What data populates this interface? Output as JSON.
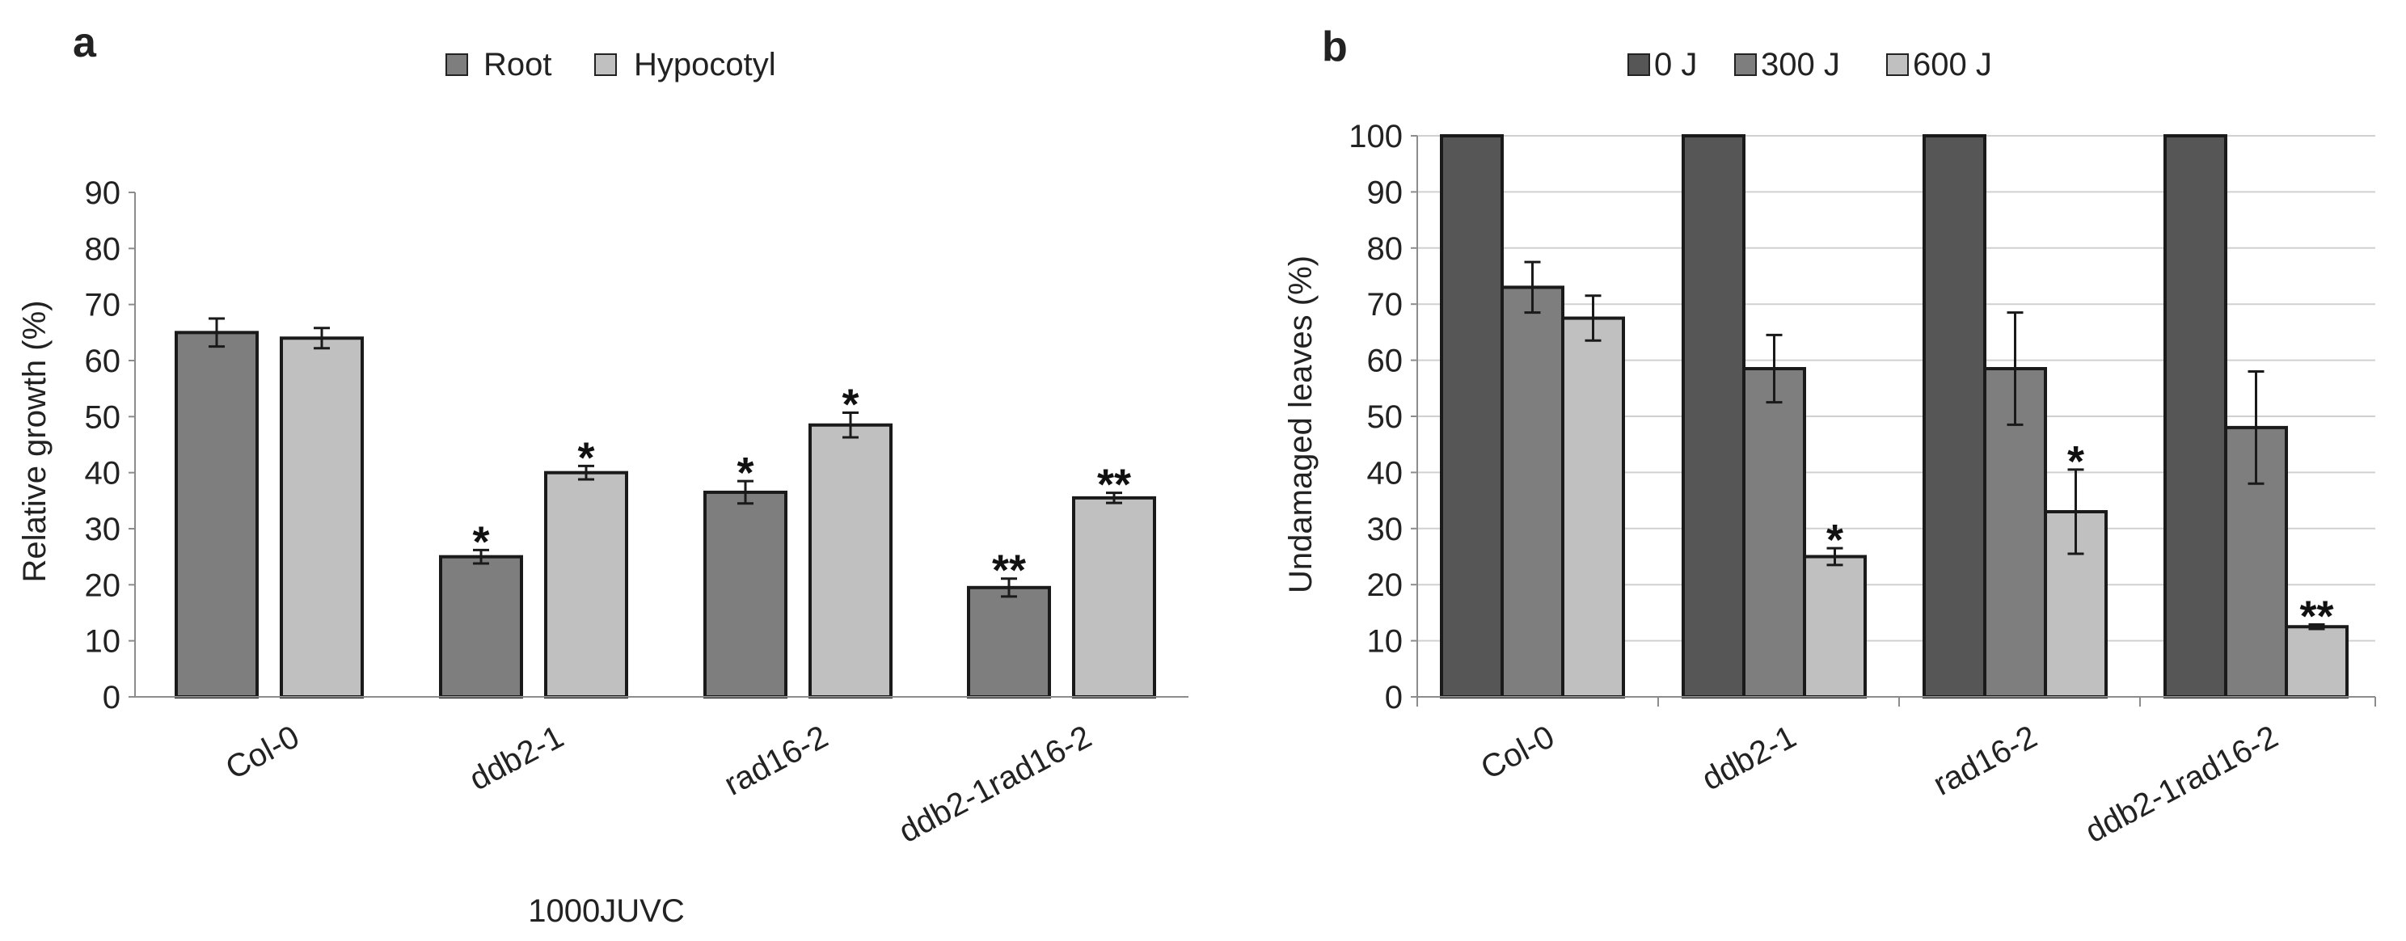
{
  "colors": {
    "dark": "#565656",
    "mid": "#7e7e7e",
    "light": "#c0c0c0",
    "axis": "#8c8c8c",
    "text": "#222222"
  },
  "chart_data": [
    {
      "panel_label": "a",
      "type": "bar",
      "categories": [
        "Col-0",
        "ddb2-1",
        "rad16-2",
        "ddb2-1rad16-2"
      ],
      "series": [
        {
          "name": "Root",
          "color": "#7e7e7e",
          "values": [
            65,
            25,
            36.5,
            19.5
          ],
          "errors": [
            2.5,
            1.2,
            2,
            1.6
          ],
          "marks": [
            "",
            "*",
            "*",
            "**"
          ]
        },
        {
          "name": "Hypocotyl",
          "color": "#c0c0c0",
          "values": [
            64,
            40,
            48.5,
            35.5
          ],
          "errors": [
            1.8,
            1.2,
            2.2,
            0.9
          ],
          "marks": [
            "",
            "*",
            "*",
            "**"
          ]
        }
      ],
      "yticks": [
        0,
        10,
        20,
        30,
        40,
        50,
        60,
        70,
        80,
        90
      ],
      "ylim": [
        0,
        90
      ],
      "ylabel": "Relative growth (%)",
      "xlabel": "1000JUVC",
      "legend_position": "top-center",
      "grid": false
    },
    {
      "panel_label": "b",
      "type": "bar",
      "categories": [
        "Col-0",
        "ddb2-1",
        "rad16-2",
        "ddb2-1rad16-2"
      ],
      "series": [
        {
          "name": "0 J",
          "color": "#565656",
          "values": [
            100,
            100,
            100,
            100
          ],
          "errors": [
            0,
            0,
            0,
            0
          ],
          "marks": [
            "",
            "",
            "",
            ""
          ]
        },
        {
          "name": "300 J",
          "color": "#7e7e7e",
          "values": [
            73,
            58.5,
            58.5,
            48
          ],
          "errors": [
            4.5,
            6,
            10,
            10
          ],
          "marks": [
            "",
            "",
            "",
            ""
          ]
        },
        {
          "name": "600 J",
          "color": "#c0c0c0",
          "values": [
            67.5,
            25,
            33,
            12.5
          ],
          "errors": [
            4,
            1.5,
            7.5,
            0.4
          ],
          "marks": [
            "",
            "*",
            "*",
            "**"
          ]
        }
      ],
      "yticks": [
        0,
        10,
        20,
        30,
        40,
        50,
        60,
        70,
        80,
        90,
        100
      ],
      "ylim": [
        0,
        100
      ],
      "ylabel": "Undamaged leaves (%)",
      "xlabel": "",
      "legend_position": "top-center",
      "grid": true
    }
  ]
}
